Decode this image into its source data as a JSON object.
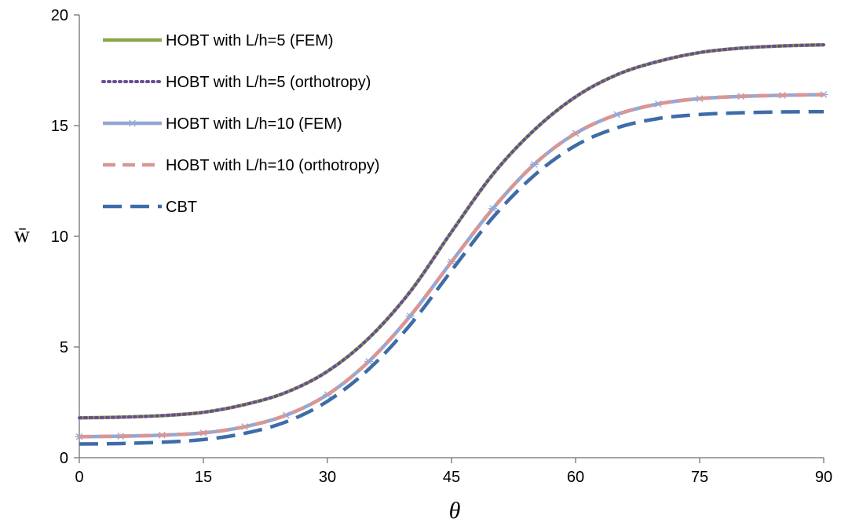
{
  "chart_data": {
    "type": "line",
    "xlabel": "θ",
    "ylabel": "w̄",
    "xlim": [
      0,
      90
    ],
    "ylim": [
      0,
      20
    ],
    "x_ticks": [
      "0",
      "15",
      "30",
      "45",
      "60",
      "75",
      "90"
    ],
    "y_ticks": [
      "0",
      "5",
      "10",
      "15",
      "20"
    ],
    "grid": false,
    "legend_position": "top-left",
    "x": [
      0,
      5,
      10,
      15,
      20,
      25,
      30,
      35,
      40,
      45,
      50,
      55,
      60,
      65,
      70,
      75,
      80,
      85,
      90
    ],
    "series": [
      {
        "name": "HOBT with L/h=5 (FEM)",
        "color": "#8aa84a",
        "style": "solid",
        "values": [
          1.8,
          1.83,
          1.9,
          2.05,
          2.4,
          2.95,
          3.9,
          5.4,
          7.5,
          10.2,
          12.8,
          14.8,
          16.3,
          17.3,
          17.9,
          18.3,
          18.5,
          18.6,
          18.65
        ]
      },
      {
        "name": "HOBT with L/h=5 (orthotropy)",
        "color": "#6a4c93",
        "style": "dotted",
        "values": [
          1.8,
          1.83,
          1.9,
          2.05,
          2.4,
          2.95,
          3.9,
          5.4,
          7.5,
          10.2,
          12.8,
          14.8,
          16.3,
          17.3,
          17.9,
          18.3,
          18.5,
          18.6,
          18.65
        ]
      },
      {
        "name": "HOBT with L/h=10 (FEM)",
        "color": "#94a8d4",
        "style": "solid-marker",
        "values": [
          0.95,
          0.97,
          1.02,
          1.12,
          1.4,
          1.92,
          2.85,
          4.35,
          6.4,
          8.85,
          11.25,
          13.25,
          14.65,
          15.5,
          15.98,
          16.22,
          16.32,
          16.37,
          16.4
        ]
      },
      {
        "name": "HOBT with L/h=10 (orthotropy)",
        "color": "#d99694",
        "style": "dashed",
        "values": [
          0.95,
          0.97,
          1.02,
          1.12,
          1.4,
          1.92,
          2.85,
          4.35,
          6.4,
          8.85,
          11.25,
          13.25,
          14.65,
          15.5,
          15.98,
          16.22,
          16.32,
          16.37,
          16.4
        ]
      },
      {
        "name": "CBT",
        "color": "#3e6ca8",
        "style": "long-dashed",
        "values": [
          0.62,
          0.64,
          0.7,
          0.82,
          1.1,
          1.62,
          2.55,
          4.0,
          6.0,
          8.45,
          10.85,
          12.75,
          14.1,
          14.9,
          15.32,
          15.5,
          15.58,
          15.62,
          15.63
        ]
      }
    ]
  }
}
